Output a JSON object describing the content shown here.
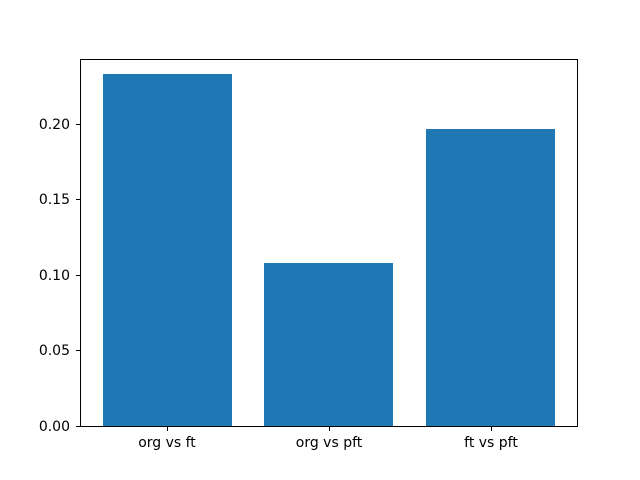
{
  "chart_data": {
    "type": "bar",
    "title": "",
    "xlabel": "",
    "ylabel": "",
    "categories": [
      "org vs ft",
      "org vs pft",
      "ft vs pft"
    ],
    "values": [
      0.233,
      0.108,
      0.197
    ],
    "yticks": [
      0.0,
      0.05,
      0.1,
      0.15,
      0.2
    ],
    "ytick_labels": [
      "0.00",
      "0.05",
      "0.10",
      "0.15",
      "0.20"
    ],
    "ylim": [
      0,
      0.2437
    ],
    "xlim": [
      -0.54,
      2.54
    ],
    "bar_width_units": 0.8,
    "bar_color": "#1f77b4",
    "spine_color": "#000000",
    "background_color": "#ffffff",
    "grid": false,
    "legend": null
  }
}
